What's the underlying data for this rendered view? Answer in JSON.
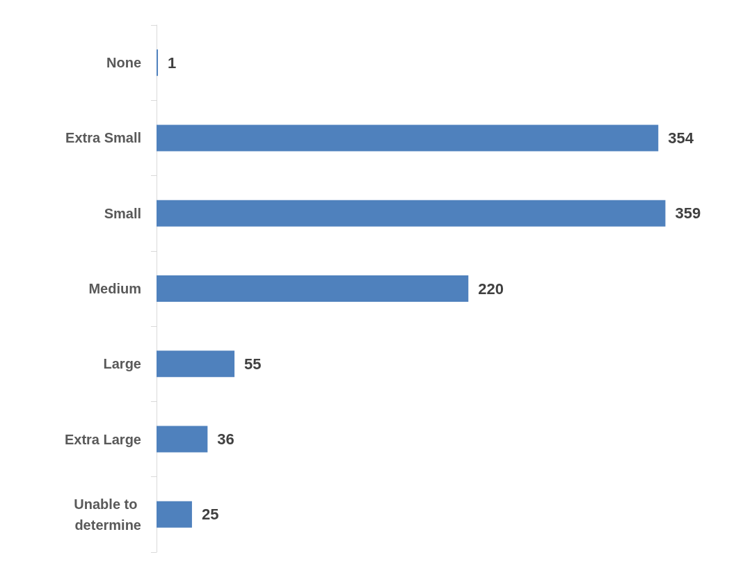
{
  "chart_data": {
    "type": "bar",
    "orientation": "horizontal",
    "categories": [
      "None",
      "Extra Small",
      "Small",
      "Medium",
      "Large",
      "Extra Large",
      "Unable to determine"
    ],
    "values": [
      1,
      354,
      359,
      220,
      55,
      36,
      25
    ],
    "color": "#4f81bd",
    "data_labels": true
  }
}
